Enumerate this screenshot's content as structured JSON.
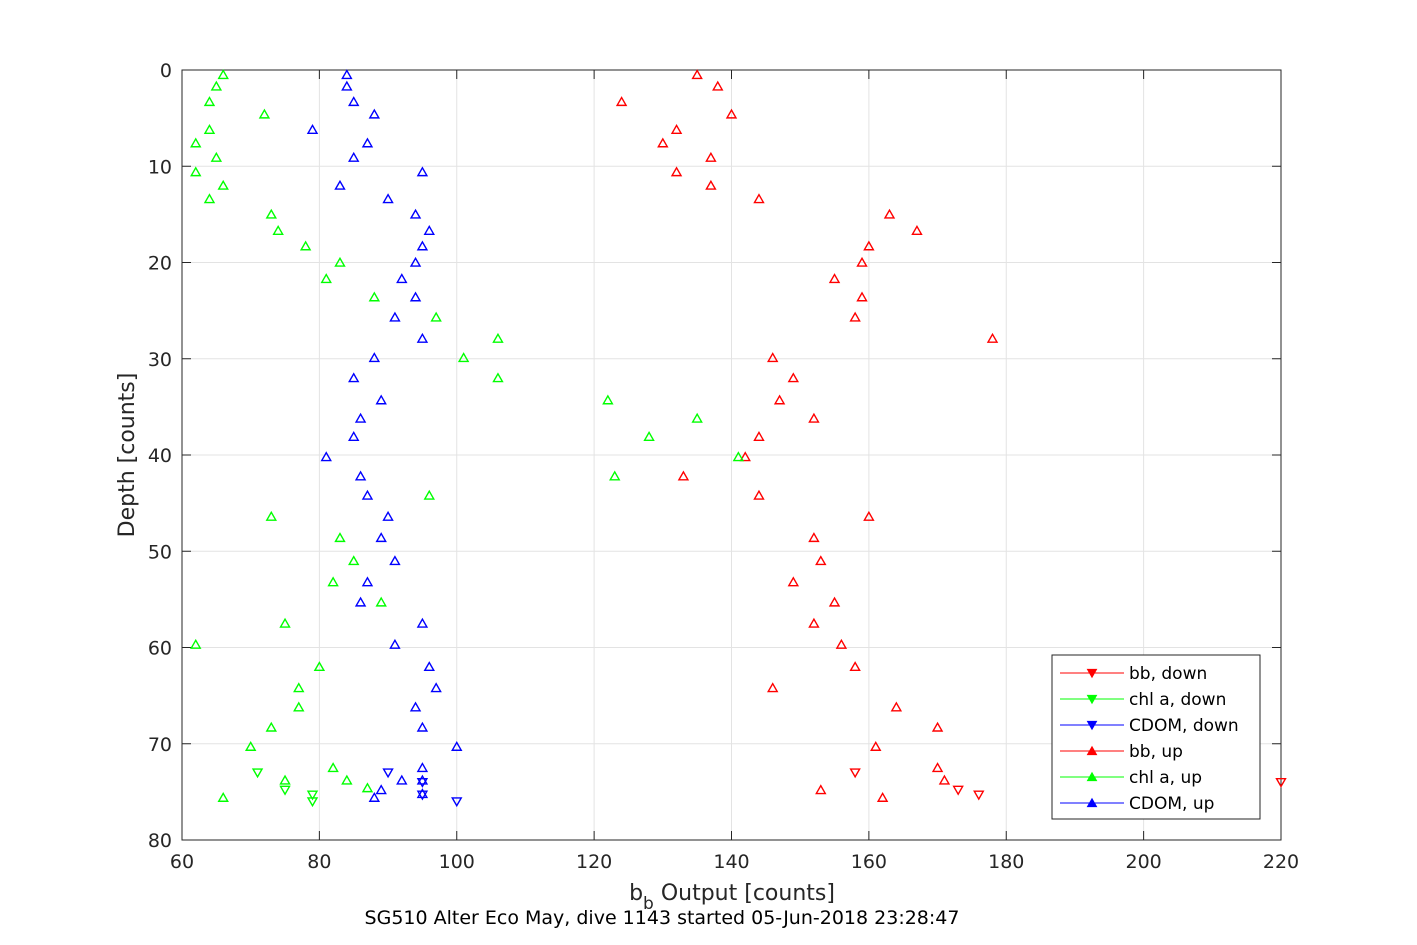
{
  "chart_data": {
    "type": "scatter",
    "xlabel_main": "b",
    "xlabel_sub": "b",
    "xlabel_rest": " Output [counts]",
    "ylabel": "Depth [counts]",
    "caption": "SG510 Alter Eco May, dive 1143 started 05-Jun-2018 23:28:47",
    "xlim": [
      60,
      220
    ],
    "ylim": [
      0,
      80
    ],
    "y_reversed": true,
    "grid": true,
    "legend_position": "bottom-right",
    "xticks": [
      "60",
      "80",
      "100",
      "120",
      "140",
      "160",
      "180",
      "200",
      "220"
    ],
    "yticks": [
      "0",
      "10",
      "20",
      "30",
      "40",
      "50",
      "60",
      "70",
      "80"
    ],
    "series": [
      {
        "name": "bb, down",
        "color": "#ff0000",
        "marker": "triangle-down",
        "points": [
          [
            158,
            73
          ],
          [
            173,
            74.8
          ],
          [
            176,
            75.3
          ],
          [
            220,
            74
          ]
        ]
      },
      {
        "name": "chl a, down",
        "color": "#00ff00",
        "marker": "triangle-down",
        "points": [
          [
            71,
            73
          ],
          [
            75,
            74.8
          ],
          [
            79,
            75.3
          ],
          [
            79,
            76
          ]
        ]
      },
      {
        "name": "CDOM, down",
        "color": "#0000ff",
        "marker": "triangle-down",
        "points": [
          [
            90,
            73
          ],
          [
            95,
            74
          ],
          [
            95,
            75.3
          ],
          [
            100,
            76
          ]
        ]
      },
      {
        "name": "bb, up",
        "color": "#ff0000",
        "marker": "triangle-up",
        "points": [
          [
            135,
            0.5
          ],
          [
            138,
            1.7
          ],
          [
            124,
            3.3
          ],
          [
            140,
            4.6
          ],
          [
            132,
            6.2
          ],
          [
            130,
            7.6
          ],
          [
            137,
            9.1
          ],
          [
            132,
            10.6
          ],
          [
            137,
            12
          ],
          [
            144,
            13.4
          ],
          [
            163,
            15
          ],
          [
            167,
            16.7
          ],
          [
            160,
            18.3
          ],
          [
            159,
            20
          ],
          [
            155,
            21.7
          ],
          [
            159,
            23.6
          ],
          [
            158,
            25.7
          ],
          [
            178,
            27.9
          ],
          [
            146,
            29.9
          ],
          [
            149,
            32
          ],
          [
            147,
            34.3
          ],
          [
            152,
            36.2
          ],
          [
            144,
            38.1
          ],
          [
            142,
            40.2
          ],
          [
            133,
            42.2
          ],
          [
            144,
            44.2
          ],
          [
            160,
            46.4
          ],
          [
            152,
            48.6
          ],
          [
            153,
            51
          ],
          [
            149,
            53.2
          ],
          [
            155,
            55.3
          ],
          [
            152,
            57.5
          ],
          [
            156,
            59.7
          ],
          [
            158,
            62
          ],
          [
            146,
            64.2
          ],
          [
            164,
            66.2
          ],
          [
            170,
            68.3
          ],
          [
            161,
            70.3
          ],
          [
            170,
            72.5
          ],
          [
            171,
            73.8
          ],
          [
            153,
            74.8
          ],
          [
            162,
            75.6
          ]
        ]
      },
      {
        "name": "chl a, up",
        "color": "#00ff00",
        "marker": "triangle-up",
        "points": [
          [
            66,
            0.5
          ],
          [
            65,
            1.7
          ],
          [
            64,
            3.3
          ],
          [
            72,
            4.6
          ],
          [
            64,
            6.2
          ],
          [
            62,
            7.6
          ],
          [
            65,
            9.1
          ],
          [
            62,
            10.6
          ],
          [
            66,
            12
          ],
          [
            64,
            13.4
          ],
          [
            73,
            15
          ],
          [
            74,
            16.7
          ],
          [
            78,
            18.3
          ],
          [
            83,
            20
          ],
          [
            81,
            21.7
          ],
          [
            88,
            23.6
          ],
          [
            97,
            25.7
          ],
          [
            106,
            27.9
          ],
          [
            101,
            29.9
          ],
          [
            106,
            32
          ],
          [
            122,
            34.3
          ],
          [
            135,
            36.2
          ],
          [
            128,
            38.1
          ],
          [
            141,
            40.2
          ],
          [
            123,
            42.2
          ],
          [
            96,
            44.2
          ],
          [
            73,
            46.4
          ],
          [
            83,
            48.6
          ],
          [
            85,
            51
          ],
          [
            82,
            53.2
          ],
          [
            89,
            55.3
          ],
          [
            75,
            57.5
          ],
          [
            62,
            59.7
          ],
          [
            80,
            62
          ],
          [
            77,
            64.2
          ],
          [
            77,
            66.2
          ],
          [
            73,
            68.3
          ],
          [
            70,
            70.3
          ],
          [
            82,
            72.5
          ],
          [
            75,
            73.8
          ],
          [
            84,
            73.8
          ],
          [
            87,
            74.6
          ],
          [
            66,
            75.6
          ]
        ]
      },
      {
        "name": "CDOM, up",
        "color": "#0000ff",
        "marker": "triangle-up",
        "points": [
          [
            84,
            0.5
          ],
          [
            84,
            1.7
          ],
          [
            85,
            3.3
          ],
          [
            88,
            4.6
          ],
          [
            79,
            6.2
          ],
          [
            87,
            7.6
          ],
          [
            85,
            9.1
          ],
          [
            95,
            10.6
          ],
          [
            83,
            12
          ],
          [
            90,
            13.4
          ],
          [
            94,
            15
          ],
          [
            96,
            16.7
          ],
          [
            95,
            18.3
          ],
          [
            94,
            20
          ],
          [
            92,
            21.7
          ],
          [
            94,
            23.6
          ],
          [
            91,
            25.7
          ],
          [
            95,
            27.9
          ],
          [
            88,
            29.9
          ],
          [
            85,
            32
          ],
          [
            89,
            34.3
          ],
          [
            86,
            36.2
          ],
          [
            85,
            38.1
          ],
          [
            81,
            40.2
          ],
          [
            86,
            42.2
          ],
          [
            87,
            44.2
          ],
          [
            90,
            46.4
          ],
          [
            89,
            48.6
          ],
          [
            91,
            51
          ],
          [
            87,
            53.2
          ],
          [
            86,
            55.3
          ],
          [
            95,
            57.5
          ],
          [
            91,
            59.7
          ],
          [
            96,
            62
          ],
          [
            97,
            64.2
          ],
          [
            94,
            66.2
          ],
          [
            95,
            68.3
          ],
          [
            100,
            70.3
          ],
          [
            95,
            72.5
          ],
          [
            92,
            73.8
          ],
          [
            95,
            73.8
          ],
          [
            89,
            74.8
          ],
          [
            88,
            75.6
          ],
          [
            95,
            75.2
          ]
        ]
      }
    ]
  }
}
